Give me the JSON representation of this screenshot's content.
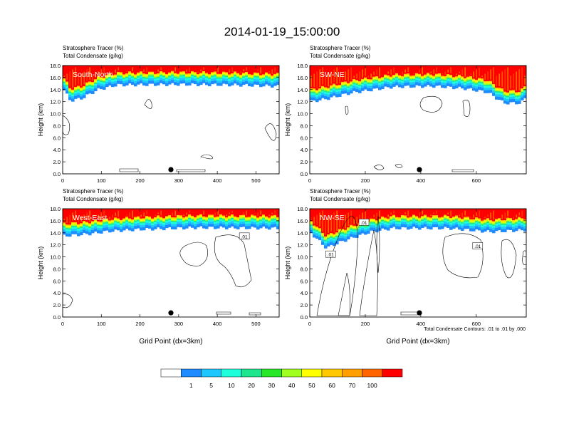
{
  "figure": {
    "title": "2014-01-19_15:00:00",
    "footnote": "Total Condensate Contours: .01 to .01 by .000"
  },
  "chart_data": [
    {
      "type": "heatmap",
      "panel_label": "South-North",
      "header_lines": [
        "Stratosphere Tracer   (%)",
        "Total Condensate   (g/kg)"
      ],
      "ylabel": "Height (km)",
      "xlabel": "",
      "xlim": [
        0,
        560
      ],
      "xticks": [
        0,
        100,
        200,
        300,
        400,
        500
      ],
      "ylim": [
        0,
        18
      ],
      "yticks": [
        "0.0",
        "2.0",
        "4.0",
        "6.0",
        "8.0",
        "10.0",
        "12.0",
        "14.0",
        "16.0",
        "18.0"
      ],
      "marker_x": 280,
      "contour_labels": [],
      "tracer_top_km": 18,
      "tracer_base_km": [
        [
          0,
          14.3
        ],
        [
          20,
          12.2
        ],
        [
          50,
          12.6
        ],
        [
          90,
          14.0
        ],
        [
          140,
          14.8
        ],
        [
          300,
          14.9
        ],
        [
          450,
          14.8
        ],
        [
          560,
          14.6
        ]
      ]
    },
    {
      "type": "heatmap",
      "panel_label": "SW-NE",
      "header_lines": [
        "Stratosphere Tracer   (%)",
        "Total Condensate   (g/kg)"
      ],
      "ylabel": "Height (km)",
      "xlabel": "",
      "xlim": [
        0,
        780
      ],
      "xticks": [
        0,
        200,
        400,
        600
      ],
      "ylim": [
        0,
        18
      ],
      "yticks": [
        "0.0",
        "2.0",
        "4.0",
        "6.0",
        "8.0",
        "10.0",
        "12.0",
        "14.0",
        "16.0",
        "18.0"
      ],
      "marker_x": 395,
      "contour_labels": [],
      "tracer_base_km": [
        [
          0,
          12.0
        ],
        [
          60,
          12.5
        ],
        [
          150,
          13.5
        ],
        [
          300,
          14.5
        ],
        [
          450,
          14.6
        ],
        [
          560,
          14.2
        ],
        [
          640,
          13.6
        ],
        [
          700,
          11.8
        ],
        [
          760,
          11.8
        ],
        [
          780,
          12.8
        ]
      ]
    },
    {
      "type": "heatmap",
      "panel_label": "West-East",
      "header_lines": [
        "Stratosphere Tracer   (%)",
        "Total Condensate   (g/kg)"
      ],
      "ylabel": "Height (km)",
      "xlabel": "Grid Point (dx=3km)",
      "xlim": [
        0,
        560
      ],
      "xticks": [
        0,
        100,
        200,
        300,
        400,
        500
      ],
      "ylim": [
        0,
        18
      ],
      "yticks": [
        "0.0",
        "2.0",
        "4.0",
        "6.0",
        "8.0",
        "10.0",
        "12.0",
        "14.0",
        "16.0",
        "18.0"
      ],
      "marker_x": 280,
      "contour_labels": [
        {
          "text": ".01",
          "x": 470,
          "y": 13.4
        }
      ],
      "tracer_base_km": [
        [
          0,
          13.5
        ],
        [
          60,
          13.8
        ],
        [
          120,
          14.3
        ],
        [
          200,
          14.6
        ],
        [
          350,
          14.9
        ],
        [
          560,
          14.8
        ]
      ]
    },
    {
      "type": "heatmap",
      "panel_label": "NW-SE",
      "header_lines": [
        "Stratosphere Tracer   (%)",
        "Total Condensate   (g/kg)"
      ],
      "ylabel": "Height (km)",
      "xlabel": "Grid Point (dx=3km)",
      "xlim": [
        0,
        780
      ],
      "xticks": [
        0,
        200,
        400,
        600
      ],
      "ylim": [
        0,
        18
      ],
      "yticks": [
        "0.0",
        "2.0",
        "4.0",
        "6.0",
        "8.0",
        "10.0",
        "12.0",
        "14.0",
        "16.0",
        "18.0"
      ],
      "marker_x": 395,
      "contour_labels": [
        {
          "text": ".01",
          "x": 75,
          "y": 10.4
        },
        {
          "text": ".01",
          "x": 195,
          "y": 15.7
        },
        {
          "text": ".01",
          "x": 605,
          "y": 11.8
        }
      ],
      "tracer_base_km": [
        [
          0,
          14.2
        ],
        [
          60,
          11.5
        ],
        [
          110,
          12.5
        ],
        [
          160,
          13.3
        ],
        [
          220,
          14.2
        ],
        [
          300,
          14.8
        ],
        [
          500,
          14.8
        ],
        [
          650,
          14.2
        ],
        [
          780,
          14.5
        ]
      ]
    }
  ],
  "colorbar": {
    "labels": [
      "1",
      "5",
      "10",
      "20",
      "30",
      "40",
      "50",
      "60",
      "70",
      "100"
    ],
    "colors": [
      "#ffffff",
      "#1e8cff",
      "#1ec8ff",
      "#1effdc",
      "#1ee68c",
      "#28e628",
      "#a0ff1e",
      "#ffff00",
      "#ffc800",
      "#ffa000",
      "#ff6400",
      "#ff0000"
    ]
  }
}
